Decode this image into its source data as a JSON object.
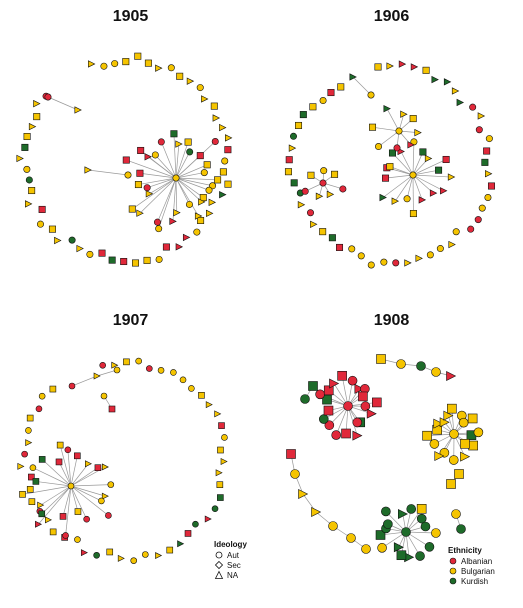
{
  "panels": [
    {
      "title": "1905"
    },
    {
      "title": "1906"
    },
    {
      "title": "1907"
    },
    {
      "title": "1908"
    }
  ],
  "ideology_legend": {
    "title": "Ideology",
    "items": [
      "Aut",
      "Sec",
      "NA"
    ]
  },
  "ethnicity_legend": {
    "title": "Ethnicity",
    "items": [
      {
        "label": "Albanian",
        "color": "#e0283a"
      },
      {
        "label": "Bulgarian",
        "color": "#f5c400"
      },
      {
        "label": "Kurdish",
        "color": "#1e6b2a"
      }
    ]
  },
  "colors": {
    "albanian": "#e0283a",
    "bulgarian": "#f5c400",
    "kurdish": "#1e6b2a",
    "edge": "#999999"
  }
}
